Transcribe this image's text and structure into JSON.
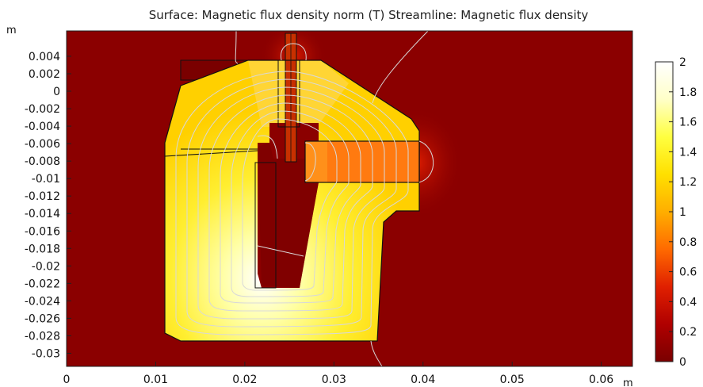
{
  "chart_data": {
    "type": "heatmap",
    "title": "Surface: Magnetic flux density norm (T)  Streamline: Magnetic flux density",
    "xunit": "m",
    "yunit": "m",
    "xlim": [
      0,
      0.0635
    ],
    "ylim": [
      -0.0315,
      0.0069
    ],
    "xticks": [
      0,
      0.01,
      0.02,
      0.03,
      0.04,
      0.05,
      0.06
    ],
    "xtick_labels": [
      "0",
      "0.01",
      "0.02",
      "0.03",
      "0.04",
      "0.05",
      "0.06"
    ],
    "yticks": [
      0.004,
      0.002,
      0,
      -0.002,
      -0.004,
      -0.006,
      -0.008,
      -0.01,
      -0.012,
      -0.014,
      -0.016,
      -0.018,
      -0.02,
      -0.022,
      -0.024,
      -0.026,
      -0.028,
      -0.03
    ],
    "ytick_labels": [
      "0.004",
      "0.002",
      "0",
      "-0.002",
      "-0.004",
      "-0.006",
      "-0.008",
      "-0.01",
      "-0.012",
      "-0.014",
      "-0.016",
      "-0.018",
      "-0.02",
      "-0.022",
      "-0.024",
      "-0.026",
      "-0.028",
      "-0.03"
    ],
    "colorbar": {
      "range": [
        0,
        2
      ],
      "ticks": [
        2,
        1.8,
        1.6,
        1.4,
        1.2,
        1,
        0.8,
        0.6,
        0.4,
        0.2,
        0
      ],
      "tick_labels": [
        "2",
        "1.8",
        "1.6",
        "1.4",
        "1.2",
        "1",
        "0.8",
        "0.6",
        "0.4",
        "0.2",
        "0"
      ],
      "colormap": [
        "#7a0000",
        "#b00000",
        "#e02000",
        "#ff6a00",
        "#ffae00",
        "#ffe000",
        "#ffff40",
        "#ffffc8",
        "#ffffff"
      ]
    },
    "background_color": "#8b0000",
    "streamline_color": "#d8d8d8",
    "core_outline": [
      [
        0.0127,
        0.0036
      ],
      [
        0.0287,
        0.0036
      ],
      [
        0.0393,
        -0.0033
      ],
      [
        0.0398,
        -0.0045
      ],
      [
        0.0398,
        -0.0134
      ],
      [
        0.0362,
        -0.0134
      ],
      [
        0.0346,
        -0.0155
      ],
      [
        0.0345,
        -0.0292
      ],
      [
        0.0115,
        -0.0292
      ],
      [
        0.0111,
        -0.0285
      ],
      [
        0.0111,
        -0.0076
      ],
      [
        0.0113,
        -0.0068
      ],
      [
        0.0125,
        -0.0006
      ],
      [
        0.0144,
        0.0001
      ]
    ]
  }
}
